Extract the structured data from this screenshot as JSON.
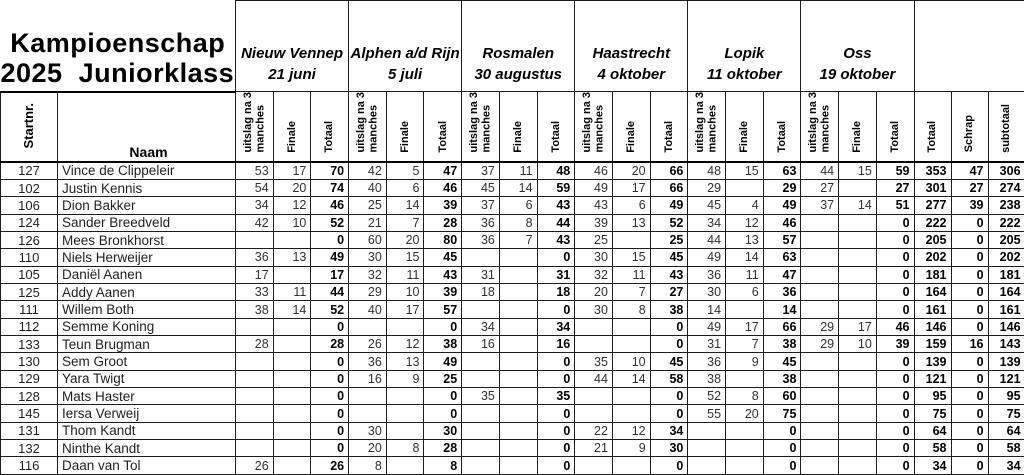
{
  "title": {
    "line1": "Kampioenschap",
    "line2": "2025  Juniorklasse"
  },
  "columns": {
    "startnr": "Startnr.",
    "naam": "Naam",
    "event_sub": [
      "uitslag na 3\nmanches",
      "Finale",
      "Totaal"
    ],
    "final": [
      "Totaal",
      "Schrap",
      "subtotaal"
    ]
  },
  "events": [
    {
      "name": "Nieuw Vennep",
      "date": "21 juni"
    },
    {
      "name": "Alphen a/d Rijn",
      "date": "5 juli"
    },
    {
      "name": "Rosmalen",
      "date": "30 augustus"
    },
    {
      "name": "Haastrecht",
      "date": "4 oktober"
    },
    {
      "name": "Lopik",
      "date": "11 oktober"
    },
    {
      "name": "Oss",
      "date": "19 oktober"
    }
  ],
  "riders": [
    {
      "startnr": "127",
      "name": "Vince de Clippeleir",
      "results": [
        [
          "53",
          "17",
          "70"
        ],
        [
          "42",
          "5",
          "47"
        ],
        [
          "37",
          "11",
          "48"
        ],
        [
          "46",
          "20",
          "66"
        ],
        [
          "48",
          "15",
          "63"
        ],
        [
          "44",
          "15",
          "59"
        ]
      ],
      "totaal": "353",
      "schrap": "47",
      "subtotaal": "306"
    },
    {
      "startnr": "102",
      "name": "Justin Kennis",
      "results": [
        [
          "54",
          "20",
          "74"
        ],
        [
          "40",
          "6",
          "46"
        ],
        [
          "45",
          "14",
          "59"
        ],
        [
          "49",
          "17",
          "66"
        ],
        [
          "29",
          "",
          "29"
        ],
        [
          "27",
          "",
          "27"
        ]
      ],
      "totaal": "301",
      "schrap": "27",
      "subtotaal": "274"
    },
    {
      "startnr": "106",
      "name": "Dion Bakker",
      "results": [
        [
          "34",
          "12",
          "46"
        ],
        [
          "25",
          "14",
          "39"
        ],
        [
          "37",
          "6",
          "43"
        ],
        [
          "43",
          "6",
          "49"
        ],
        [
          "45",
          "4",
          "49"
        ],
        [
          "37",
          "14",
          "51"
        ]
      ],
      "totaal": "277",
      "schrap": "39",
      "subtotaal": "238"
    },
    {
      "startnr": "124",
      "name": "Sander Breedveld",
      "results": [
        [
          "42",
          "10",
          "52"
        ],
        [
          "21",
          "7",
          "28"
        ],
        [
          "36",
          "8",
          "44"
        ],
        [
          "39",
          "13",
          "52"
        ],
        [
          "34",
          "12",
          "46"
        ],
        [
          "",
          "",
          "0"
        ]
      ],
      "totaal": "222",
      "schrap": "0",
      "subtotaal": "222"
    },
    {
      "startnr": "126",
      "name": "Mees Bronkhorst",
      "results": [
        [
          "",
          "",
          "0"
        ],
        [
          "60",
          "20",
          "80"
        ],
        [
          "36",
          "7",
          "43"
        ],
        [
          "25",
          "",
          "25"
        ],
        [
          "44",
          "13",
          "57"
        ],
        [
          "",
          "",
          "0"
        ]
      ],
      "totaal": "205",
      "schrap": "0",
      "subtotaal": "205"
    },
    {
      "startnr": "110",
      "name": "Niels Herweijer",
      "results": [
        [
          "36",
          "13",
          "49"
        ],
        [
          "30",
          "15",
          "45"
        ],
        [
          "",
          "",
          "0"
        ],
        [
          "30",
          "15",
          "45"
        ],
        [
          "49",
          "14",
          "63"
        ],
        [
          "",
          "",
          "0"
        ]
      ],
      "totaal": "202",
      "schrap": "0",
      "subtotaal": "202"
    },
    {
      "startnr": "105",
      "name": "Daniël Aanen",
      "results": [
        [
          "17",
          "",
          "17"
        ],
        [
          "32",
          "11",
          "43"
        ],
        [
          "31",
          "",
          "31"
        ],
        [
          "32",
          "11",
          "43"
        ],
        [
          "36",
          "11",
          "47"
        ],
        [
          "",
          "",
          "0"
        ]
      ],
      "totaal": "181",
      "schrap": "0",
      "subtotaal": "181"
    },
    {
      "startnr": "125",
      "name": "Addy Aanen",
      "results": [
        [
          "33",
          "11",
          "44"
        ],
        [
          "29",
          "10",
          "39"
        ],
        [
          "18",
          "",
          "18"
        ],
        [
          "20",
          "7",
          "27"
        ],
        [
          "30",
          "6",
          "36"
        ],
        [
          "",
          "",
          "0"
        ]
      ],
      "totaal": "164",
      "schrap": "0",
      "subtotaal": "164"
    },
    {
      "startnr": "111",
      "name": "Willem Both",
      "results": [
        [
          "38",
          "14",
          "52"
        ],
        [
          "40",
          "17",
          "57"
        ],
        [
          "",
          "",
          "0"
        ],
        [
          "30",
          "8",
          "38"
        ],
        [
          "14",
          "",
          "14"
        ],
        [
          "",
          "",
          "0"
        ]
      ],
      "totaal": "161",
      "schrap": "0",
      "subtotaal": "161"
    },
    {
      "startnr": "112",
      "name": "Semme Koning",
      "results": [
        [
          "",
          "",
          "0"
        ],
        [
          "",
          "",
          "0"
        ],
        [
          "34",
          "",
          "34"
        ],
        [
          "",
          "",
          "0"
        ],
        [
          "49",
          "17",
          "66"
        ],
        [
          "29",
          "17",
          "46"
        ]
      ],
      "totaal": "146",
      "schrap": "0",
      "subtotaal": "146"
    },
    {
      "startnr": "133",
      "name": "Teun Brugman",
      "results": [
        [
          "28",
          "",
          "28"
        ],
        [
          "26",
          "12",
          "38"
        ],
        [
          "16",
          "",
          "16"
        ],
        [
          "",
          "",
          "0"
        ],
        [
          "31",
          "7",
          "38"
        ],
        [
          "29",
          "10",
          "39"
        ]
      ],
      "totaal": "159",
      "schrap": "16",
      "subtotaal": "143"
    },
    {
      "startnr": "130",
      "name": "Sem Groot",
      "results": [
        [
          "",
          "",
          "0"
        ],
        [
          "36",
          "13",
          "49"
        ],
        [
          "",
          "",
          "0"
        ],
        [
          "35",
          "10",
          "45"
        ],
        [
          "36",
          "9",
          "45"
        ],
        [
          "",
          "",
          "0"
        ]
      ],
      "totaal": "139",
      "schrap": "0",
      "subtotaal": "139"
    },
    {
      "startnr": "129",
      "name": "Yara Twigt",
      "results": [
        [
          "",
          "",
          "0"
        ],
        [
          "16",
          "9",
          "25"
        ],
        [
          "",
          "",
          "0"
        ],
        [
          "44",
          "14",
          "58"
        ],
        [
          "38",
          "",
          "38"
        ],
        [
          "",
          "",
          "0"
        ]
      ],
      "totaal": "121",
      "schrap": "0",
      "subtotaal": "121"
    },
    {
      "startnr": "128",
      "name": "Mats Haster",
      "results": [
        [
          "",
          "",
          "0"
        ],
        [
          "",
          "",
          "0"
        ],
        [
          "35",
          "",
          "35"
        ],
        [
          "",
          "",
          "0"
        ],
        [
          "52",
          "8",
          "60"
        ],
        [
          "",
          "",
          "0"
        ]
      ],
      "totaal": "95",
      "schrap": "0",
      "subtotaal": "95"
    },
    {
      "startnr": "145",
      "name": "Iersa Verweij",
      "results": [
        [
          "",
          "",
          "0"
        ],
        [
          "",
          "",
          "0"
        ],
        [
          "",
          "",
          "0"
        ],
        [
          "",
          "",
          "0"
        ],
        [
          "55",
          "20",
          "75"
        ],
        [
          "",
          "",
          "0"
        ]
      ],
      "totaal": "75",
      "schrap": "0",
      "subtotaal": "75"
    },
    {
      "startnr": "131",
      "name": "Thom Kandt",
      "results": [
        [
          "",
          "",
          "0"
        ],
        [
          "30",
          "",
          "30"
        ],
        [
          "",
          "",
          "0"
        ],
        [
          "22",
          "12",
          "34"
        ],
        [
          "",
          "",
          "0"
        ],
        [
          "",
          "",
          "0"
        ]
      ],
      "totaal": "64",
      "schrap": "0",
      "subtotaal": "64"
    },
    {
      "startnr": "132",
      "name": "Ninthe Kandt",
      "results": [
        [
          "",
          "",
          "0"
        ],
        [
          "20",
          "8",
          "28"
        ],
        [
          "",
          "",
          "0"
        ],
        [
          "21",
          "9",
          "30"
        ],
        [
          "",
          "",
          "0"
        ],
        [
          "",
          "",
          "0"
        ]
      ],
      "totaal": "58",
      "schrap": "0",
      "subtotaal": "58"
    },
    {
      "startnr": "116",
      "name": "Daan van Tol",
      "results": [
        [
          "26",
          "",
          "26"
        ],
        [
          "8",
          "",
          "8"
        ],
        [
          "",
          "",
          "0"
        ],
        [
          "",
          "",
          "0"
        ],
        [
          "",
          "",
          "0"
        ],
        [
          "",
          "",
          "0"
        ]
      ],
      "totaal": "34",
      "schrap": "0",
      "subtotaal": "34"
    }
  ]
}
